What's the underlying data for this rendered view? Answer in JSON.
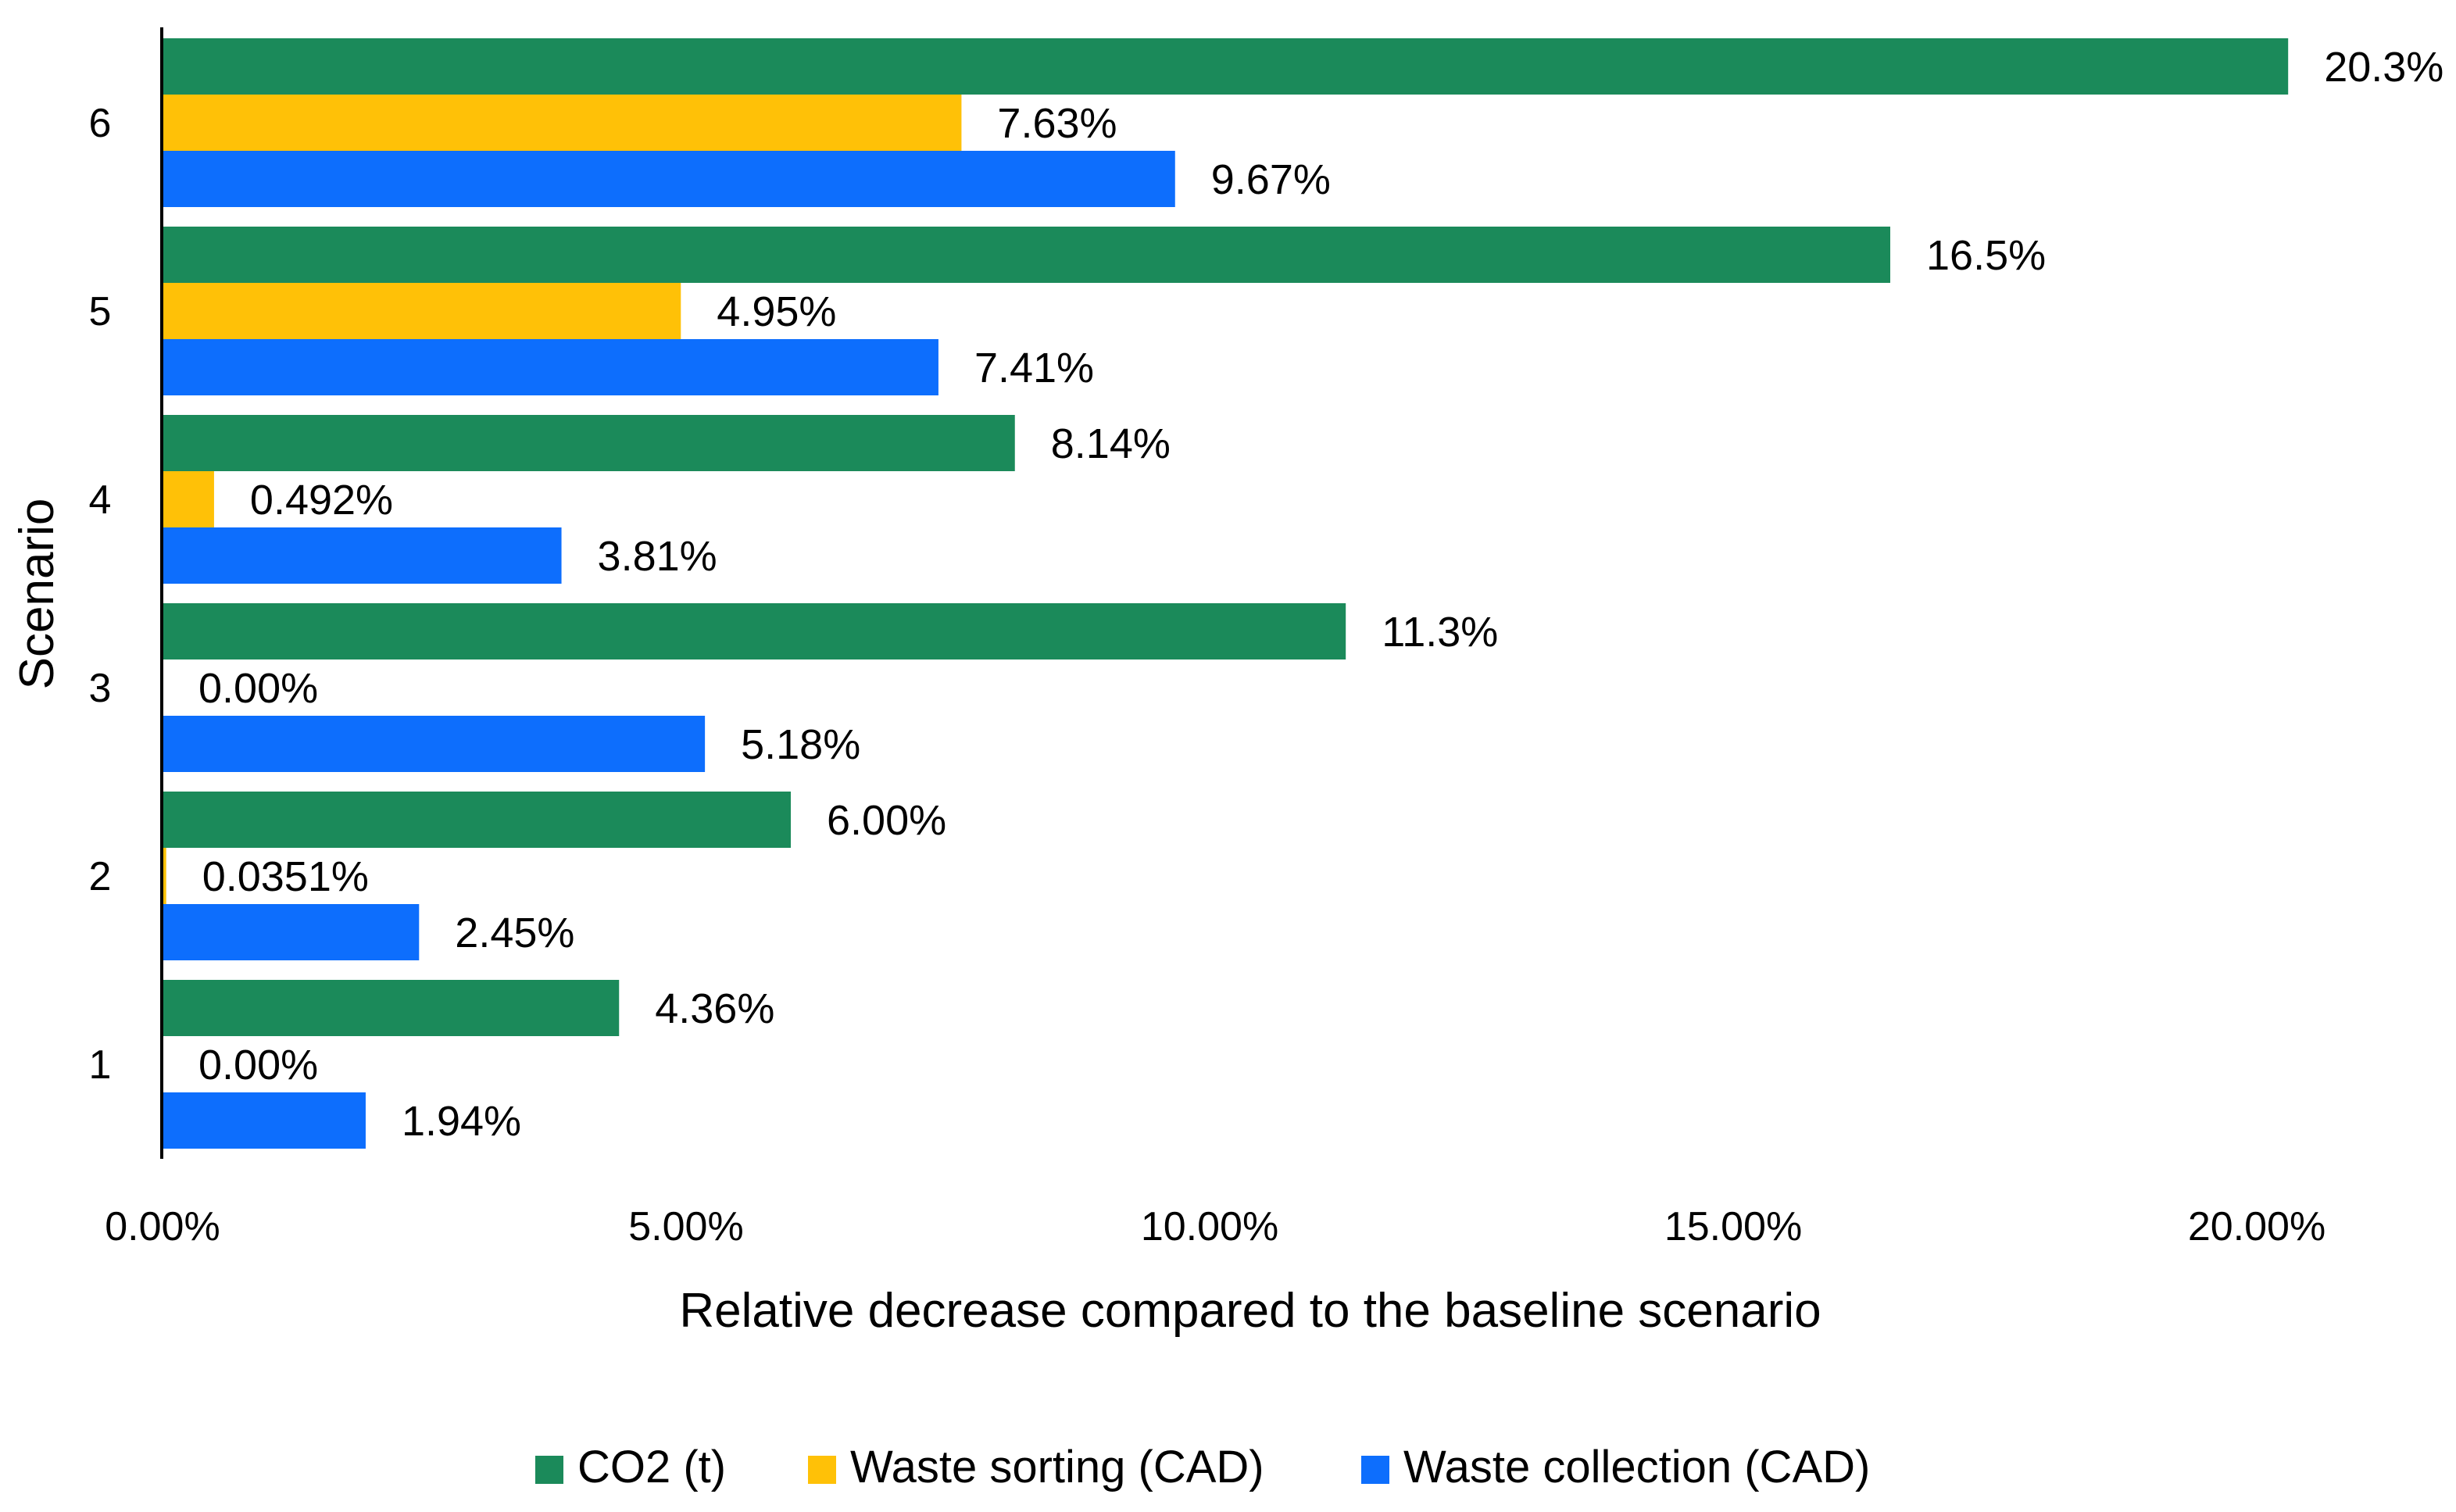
{
  "chart_data": {
    "type": "bar",
    "orientation": "horizontal",
    "title": "",
    "xlabel": "Relative decrease compared to the baseline scenario",
    "ylabel": "Scenario",
    "categories": [
      "1",
      "2",
      "3",
      "4",
      "5",
      "6"
    ],
    "xlim": [
      0,
      20
    ],
    "x_ticks": [
      0,
      5,
      10,
      15,
      20
    ],
    "x_tick_labels": [
      "0.00%",
      "5.00%",
      "10.00%",
      "15.00%",
      "20.00%"
    ],
    "grid": false,
    "legend_position": "bottom",
    "series": [
      {
        "name": "CO2 (t)",
        "color": "#1b8a5a",
        "values": [
          4.36,
          6.0,
          11.3,
          8.14,
          16.5,
          20.3
        ],
        "labels": [
          "4.36%",
          "6.00%",
          "11.3%",
          "8.14%",
          "16.5%",
          "20.3%"
        ]
      },
      {
        "name": "Waste sorting (CAD)",
        "color": "#ffc107",
        "values": [
          0.0,
          0.0351,
          0.0,
          0.492,
          4.95,
          7.63
        ],
        "labels": [
          "0.00%",
          "0.0351%",
          "0.00%",
          "0.492%",
          "4.95%",
          "7.63%"
        ]
      },
      {
        "name": "Waste collection (CAD)",
        "color": "#0d6efd",
        "values": [
          1.94,
          2.45,
          5.18,
          3.81,
          7.41,
          9.67
        ],
        "labels": [
          "1.94%",
          "2.45%",
          "5.18%",
          "3.81%",
          "7.41%",
          "9.67%"
        ]
      }
    ]
  }
}
